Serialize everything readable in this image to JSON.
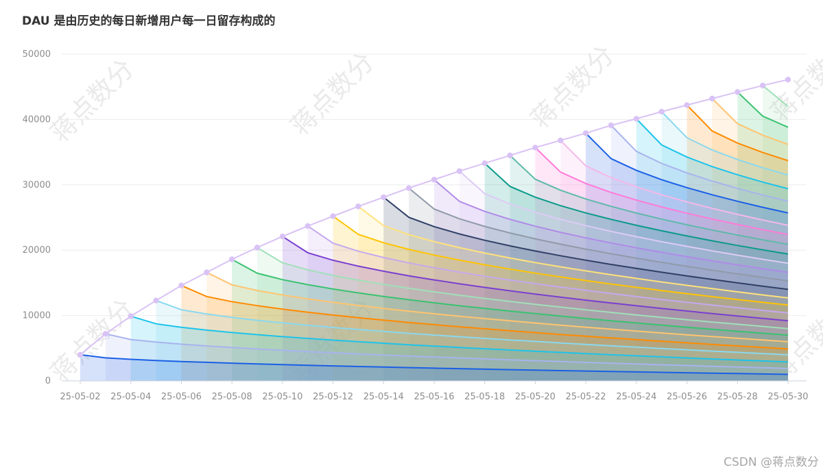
{
  "title": "DAU 是由历史的每日新增用户每一日留存构成的",
  "credit": "CSDN @蒋点数分",
  "watermark_text": "蒋点数分",
  "chart_data": {
    "type": "area",
    "title": "DAU 是由历史的每日新增用户每一日留存构成的",
    "xlabel": "",
    "ylabel": "",
    "ylim": [
      0,
      50000
    ],
    "yticks": [
      "0",
      "10000",
      "20000",
      "30000",
      "40000",
      "50000"
    ],
    "x": [
      "25-05-02",
      "25-05-03",
      "25-05-04",
      "25-05-05",
      "25-05-06",
      "25-05-07",
      "25-05-08",
      "25-05-09",
      "25-05-10",
      "25-05-11",
      "25-05-12",
      "25-05-13",
      "25-05-14",
      "25-05-15",
      "25-05-16",
      "25-05-17",
      "25-05-18",
      "25-05-19",
      "25-05-20",
      "25-05-21",
      "25-05-22",
      "25-05-23",
      "25-05-24",
      "25-05-25",
      "25-05-26",
      "25-05-27",
      "25-05-28",
      "25-05-29",
      "25-05-30"
    ],
    "xticks": [
      "25-05-02",
      "25-05-04",
      "25-05-06",
      "25-05-08",
      "25-05-10",
      "25-05-12",
      "25-05-14",
      "25-05-16",
      "25-05-18",
      "25-05-20",
      "25-05-22",
      "25-05-24",
      "25-05-26",
      "25-05-28",
      "25-05-30"
    ],
    "dau": [
      4000,
      7200,
      9900,
      12300,
      14600,
      16600,
      18600,
      20400,
      22100,
      23700,
      25200,
      26700,
      28100,
      29500,
      30800,
      32100,
      33300,
      34500,
      35700,
      36800,
      37900,
      39100,
      40100,
      41200,
      42200,
      43200,
      44200,
      45200,
      46100
    ],
    "stacked_totals_at_end": [
      1000,
      1900,
      2900,
      4000,
      4900,
      6000,
      7000,
      8000,
      9200,
      10400,
      11600,
      12700,
      14000,
      15300,
      16600,
      18000,
      19400,
      20900,
      22400,
      23800,
      25700,
      27500,
      29400,
      31500,
      33700,
      36200,
      38800,
      42000
    ],
    "colors": [
      "#1a5fe6",
      "#a8b3ee",
      "#1cc3eb",
      "#8ad8ef",
      "#ff8a00",
      "#ffc470",
      "#39c270",
      "#a0e0b8",
      "#7a3fd0",
      "#c5a8ef",
      "#ffc400",
      "#ffe27a",
      "#2f3f66",
      "#909aa8",
      "#b08ae8",
      "#ddcbf5",
      "#0a9a8a",
      "#5fb9aa",
      "#ff7ad9",
      "#f5b8e8",
      "#1a5fe6",
      "#a8b3ee",
      "#1cc3eb",
      "#8ad8ef",
      "#ff8a00",
      "#ffc470",
      "#39c270",
      "#a0e0b8"
    ],
    "dau_line_color": "#d9c2f5"
  }
}
